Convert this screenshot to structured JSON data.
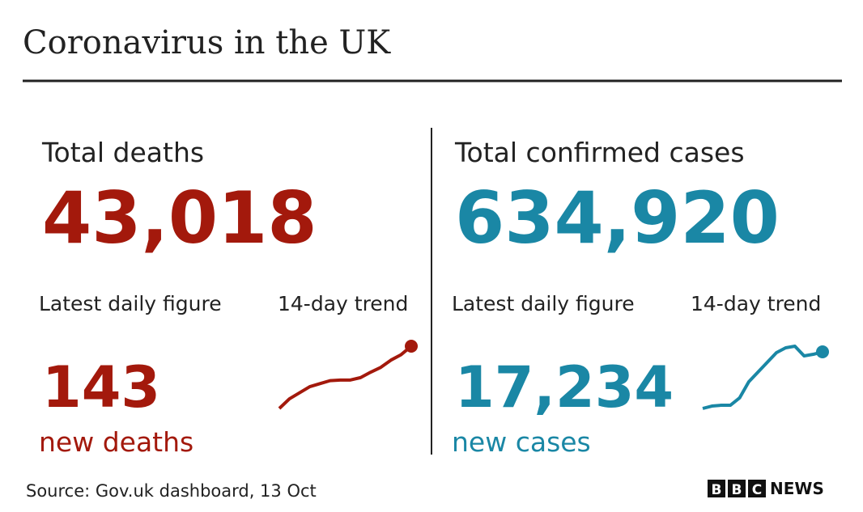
{
  "header": {
    "title": "Coronavirus in the UK"
  },
  "panels": [
    {
      "heading": "Total deaths",
      "total": "43,018",
      "daily_label": "Latest daily figure",
      "trend_label": "14-day trend",
      "daily": "143",
      "daily_unit": "new deaths",
      "color": "#a3190c",
      "trend": [
        40,
        56,
        66,
        76,
        81,
        86,
        87,
        87,
        91,
        100,
        108,
        120,
        129,
        143
      ]
    },
    {
      "heading": "Total confirmed cases",
      "total": "634,920",
      "daily_label": "Latest daily figure",
      "trend_label": "14-day trend",
      "daily": "17,234",
      "daily_unit": "new cases",
      "color": "#1a87a5",
      "trend": [
        6000,
        6480,
        6640,
        6640,
        8090,
        11300,
        13230,
        15150,
        17080,
        18040,
        18360,
        16430,
        16750,
        17234
      ]
    }
  ],
  "footer": {
    "source": "Source: Gov.uk dashboard, 13 Oct",
    "logo": [
      "B",
      "B",
      "C"
    ],
    "logo_text": "NEWS"
  }
}
